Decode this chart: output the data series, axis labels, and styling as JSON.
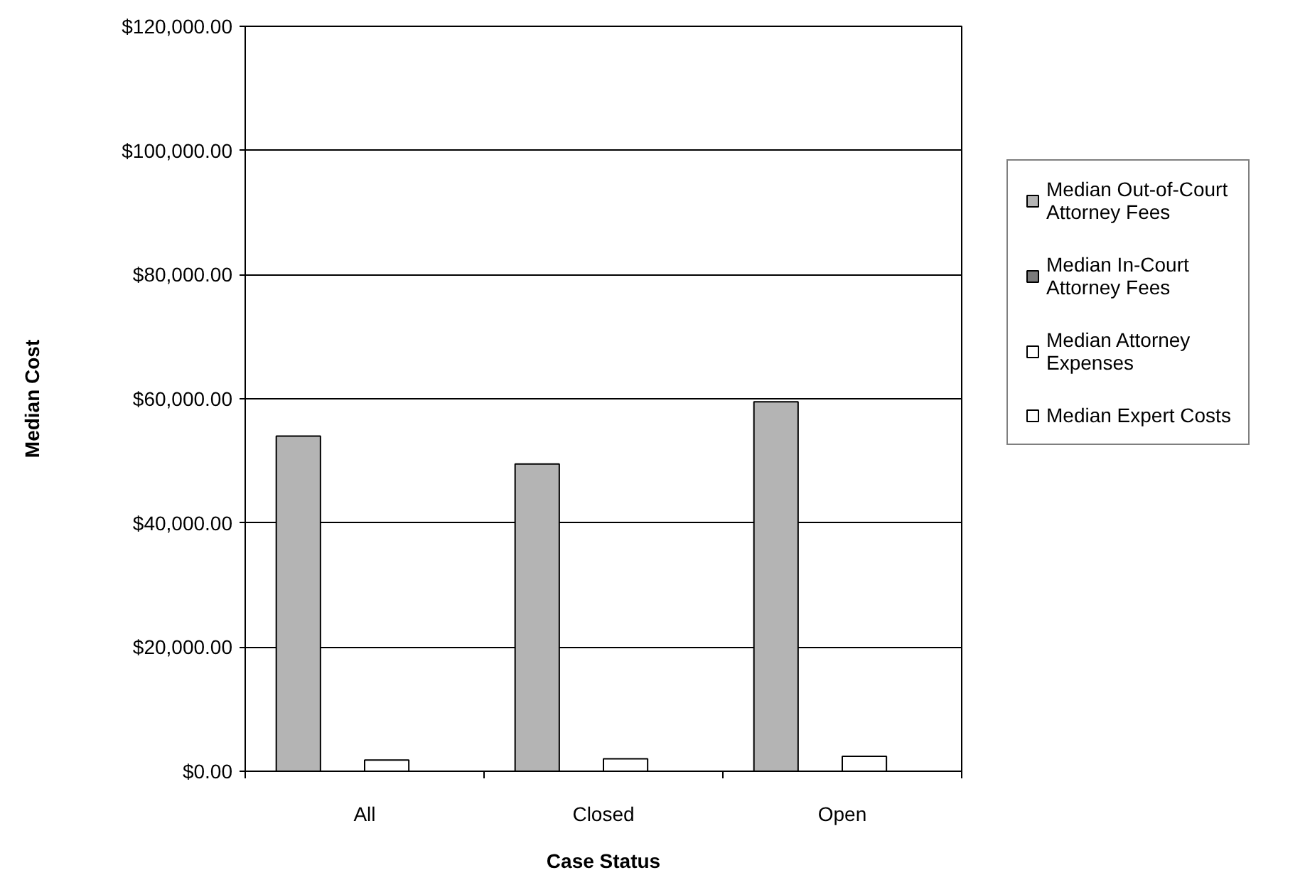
{
  "chart_data": {
    "type": "bar",
    "xlabel": "Case Status",
    "ylabel": "Median Cost",
    "categories": [
      "All",
      "Closed",
      "Open"
    ],
    "series": [
      {
        "name": "Median Out-of-Court Attorney Fees",
        "color": "#b4b4b4",
        "values": [
          54000,
          49500,
          59500
        ]
      },
      {
        "name": "Median In-Court Attorney Fees",
        "color": "#7a7a7a",
        "values": [
          null,
          null,
          null
        ]
      },
      {
        "name": "Median Attorney Expenses",
        "color": "#ffffff",
        "values": [
          1800,
          2000,
          2400
        ]
      },
      {
        "name": "Median Expert Costs",
        "color": "#ffffff",
        "values": [
          null,
          null,
          null
        ]
      }
    ],
    "ylim": [
      0,
      120000
    ],
    "yticks": [
      {
        "value": 0,
        "label": "$0.00"
      },
      {
        "value": 20000,
        "label": "$20,000.00"
      },
      {
        "value": 40000,
        "label": "$40,000.00"
      },
      {
        "value": 60000,
        "label": "$60,000.00"
      },
      {
        "value": 80000,
        "label": "$80,000.00"
      },
      {
        "value": 100000,
        "label": "$100,000.00"
      },
      {
        "value": 120000,
        "label": "$120,000.00"
      }
    ],
    "grid": "y",
    "legend": "right"
  }
}
